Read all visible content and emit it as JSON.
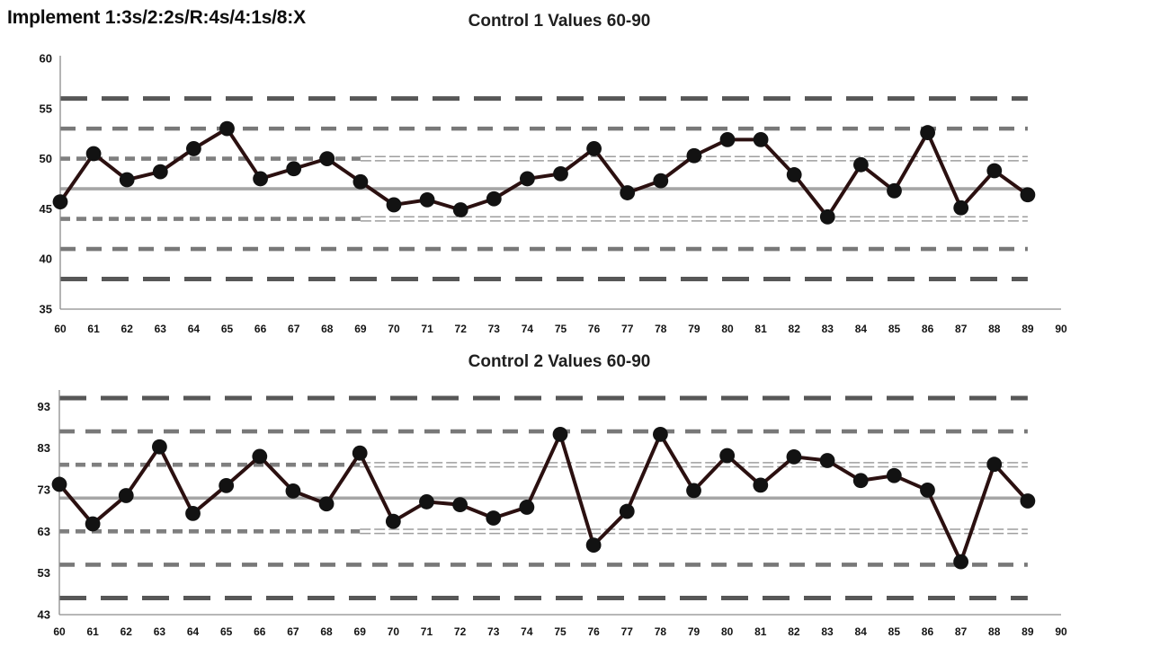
{
  "header": {
    "title": "Implement 1:3s/2:2s/R:4s/4:1s/8:X"
  },
  "colors": {
    "background": "#ffffff",
    "series_line": "#2b1010",
    "marker": "#121212",
    "sd3_line": "#575757",
    "sd2_line": "#787878",
    "sd1_line": "#7f7f7f",
    "sd1_thin_line": "#9e9e9e",
    "mean_line": "#a6a6a6",
    "axis_line": "#8c8c8c",
    "tick_text": "#141414",
    "title_text": "#1f1f1f"
  },
  "chart_data": [
    {
      "type": "line",
      "name": "control-1-chart",
      "title": "Control 1 Values 60-90",
      "legend": "none",
      "grid": "horizontal-control-limit-lines-only",
      "x": [
        60,
        61,
        62,
        63,
        64,
        65,
        66,
        67,
        68,
        69,
        70,
        71,
        72,
        73,
        74,
        75,
        76,
        77,
        78,
        79,
        80,
        81,
        82,
        83,
        84,
        85,
        86,
        87,
        88,
        89
      ],
      "values": [
        45.7,
        50.5,
        47.9,
        48.7,
        51.0,
        53.0,
        48.0,
        49.0,
        50.0,
        47.7,
        45.4,
        45.9,
        44.9,
        46.0,
        48.0,
        48.5,
        51.0,
        46.6,
        47.8,
        50.3,
        51.9,
        51.9,
        48.4,
        44.2,
        49.4,
        46.8,
        52.6,
        45.1,
        48.8,
        46.4
      ],
      "mean": 47,
      "sd": 3,
      "control_lines": {
        "plus_3sd": 56,
        "plus_2sd": 53,
        "plus_1sd": 50,
        "mean": 47,
        "minus_1sd": 44,
        "minus_2sd": 41,
        "minus_3sd": 38
      },
      "sd1_style_change_x": 69,
      "lines_end_x": 89,
      "xlim": [
        60,
        90
      ],
      "ylim": [
        35,
        60
      ],
      "x_axis_ticks": [
        60,
        61,
        62,
        63,
        64,
        65,
        66,
        67,
        68,
        69,
        70,
        71,
        72,
        73,
        74,
        75,
        76,
        77,
        78,
        79,
        80,
        81,
        82,
        83,
        84,
        85,
        86,
        87,
        88,
        89,
        90
      ],
      "y_axis_ticks": [
        35,
        40,
        45,
        50,
        55,
        60
      ]
    },
    {
      "type": "line",
      "name": "control-2-chart",
      "title": "Control 2 Values 60-90",
      "legend": "none",
      "grid": "horizontal-control-limit-lines-only",
      "x": [
        60,
        61,
        62,
        63,
        64,
        65,
        66,
        67,
        68,
        69,
        70,
        71,
        72,
        73,
        74,
        75,
        76,
        77,
        78,
        79,
        80,
        81,
        82,
        83,
        84,
        85,
        86,
        87,
        88,
        89
      ],
      "values": [
        74.3,
        64.8,
        71.6,
        83.3,
        67.3,
        74.0,
        81.0,
        72.7,
        69.6,
        81.8,
        65.4,
        70.1,
        69.4,
        66.2,
        68.8,
        86.3,
        59.7,
        67.8,
        86.3,
        72.8,
        81.2,
        74.1,
        80.9,
        80.0,
        75.2,
        76.4,
        72.9,
        55.7,
        79.1,
        70.3
      ],
      "mean": 71,
      "sd": 8,
      "control_lines": {
        "plus_3sd": 95,
        "plus_2sd": 87,
        "plus_1sd": 79,
        "mean": 71,
        "minus_1sd": 63,
        "minus_2sd": 55,
        "minus_3sd": 47
      },
      "sd1_style_change_x": 69,
      "lines_end_x": 89,
      "xlim": [
        60,
        90
      ],
      "ylim": [
        43,
        96.3
      ],
      "x_axis_ticks": [
        60,
        61,
        62,
        63,
        64,
        65,
        66,
        67,
        68,
        69,
        70,
        71,
        72,
        73,
        74,
        75,
        76,
        77,
        78,
        79,
        80,
        81,
        82,
        83,
        84,
        85,
        86,
        87,
        88,
        89,
        90
      ],
      "y_axis_ticks": [
        43,
        53,
        63,
        73,
        83,
        93
      ]
    }
  ]
}
